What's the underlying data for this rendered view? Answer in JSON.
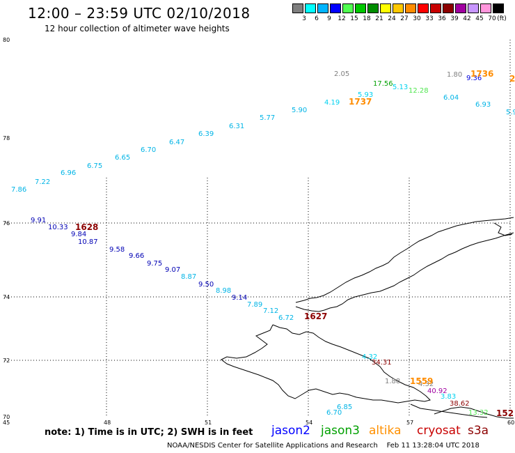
{
  "header": {
    "title": "12:00 – 23:59 UTC 02/10/2018",
    "subtitle": "12 hour collection of altimeter wave heights"
  },
  "legend": {
    "unit": "(ft)",
    "items": [
      {
        "label": "3",
        "color": "#7f7f7f"
      },
      {
        "label": "6",
        "color": "#00ffff"
      },
      {
        "label": "9",
        "color": "#00b4ff"
      },
      {
        "label": "12",
        "color": "#0000ff"
      },
      {
        "label": "15",
        "color": "#50ff50"
      },
      {
        "label": "18",
        "color": "#00c800"
      },
      {
        "label": "21",
        "color": "#008c00"
      },
      {
        "label": "24",
        "color": "#ffff00"
      },
      {
        "label": "27",
        "color": "#ffc800"
      },
      {
        "label": "30",
        "color": "#ff8c00"
      },
      {
        "label": "33",
        "color": "#ff0000"
      },
      {
        "label": "36",
        "color": "#c80000"
      },
      {
        "label": "39",
        "color": "#8c0000"
      },
      {
        "label": "42",
        "color": "#a000a0"
      },
      {
        "label": "45",
        "color": "#c896ff"
      },
      {
        "label": "70",
        "color": "#ff96dc"
      },
      {
        "label": "",
        "color": "#000000"
      }
    ]
  },
  "axes": {
    "lat_labels": [
      "80",
      "78",
      "76",
      "74",
      "72",
      "70"
    ],
    "lon_labels": [
      "45",
      "48",
      "51",
      "54",
      "57",
      "60"
    ]
  },
  "observations": [
    {
      "t": "7.86",
      "c": "#00b4e6"
    },
    {
      "t": "7.22",
      "c": "#00b4e6"
    },
    {
      "t": "6.96",
      "c": "#00b4e6"
    },
    {
      "t": "6.75",
      "c": "#00b4e6"
    },
    {
      "t": "6.65",
      "c": "#00b4e6"
    },
    {
      "t": "6.70",
      "c": "#00b4e6"
    },
    {
      "t": "6.47",
      "c": "#00b4e6"
    },
    {
      "t": "6.39",
      "c": "#00b4e6"
    },
    {
      "t": "6.31",
      "c": "#00b4e6"
    },
    {
      "t": "5.77",
      "c": "#00b4e6"
    },
    {
      "t": "5.90",
      "c": "#00b4e6"
    },
    {
      "t": "4.19",
      "c": "#00d2f0"
    },
    {
      "t": "5.93",
      "c": "#00d2f0"
    },
    {
      "t": "2.05",
      "c": "#7f7f7f"
    },
    {
      "t": "17.56",
      "c": "#00a000"
    },
    {
      "t": "5.13",
      "c": "#00d2f0"
    },
    {
      "t": "12.28",
      "c": "#50e650"
    },
    {
      "t": "1.80",
      "c": "#7f7f7f"
    },
    {
      "t": "9.36",
      "c": "#0000dc"
    },
    {
      "t": "6.04",
      "c": "#00b4e6"
    },
    {
      "t": "6.93",
      "c": "#00b4e6"
    },
    {
      "t": "5.9",
      "c": "#00b4e6"
    },
    {
      "t": "9.91",
      "c": "#0000b4"
    },
    {
      "t": "10.33",
      "c": "#0000b4"
    },
    {
      "t": "9.84",
      "c": "#0000b4"
    },
    {
      "t": "10.87",
      "c": "#0000b4"
    },
    {
      "t": "9.58",
      "c": "#0000b4"
    },
    {
      "t": "9.66",
      "c": "#0000b4"
    },
    {
      "t": "9.75",
      "c": "#0000b4"
    },
    {
      "t": "9.07",
      "c": "#0000b4"
    },
    {
      "t": "8.87",
      "c": "#00b4e6"
    },
    {
      "t": "9.50",
      "c": "#0000b4"
    },
    {
      "t": "8.98",
      "c": "#00b4e6"
    },
    {
      "t": "9.14",
      "c": "#0000b4"
    },
    {
      "t": "7.89",
      "c": "#00b4e6"
    },
    {
      "t": "7.12",
      "c": "#00b4e6"
    },
    {
      "t": "6.72",
      "c": "#00b4e6"
    },
    {
      "t": "4.32",
      "c": "#00d2f0"
    },
    {
      "t": "34.31",
      "c": "#8c0000"
    },
    {
      "t": "1.88",
      "c": "#7f7f7f"
    },
    {
      "t": "4.32",
      "c": "#7f7f7f"
    },
    {
      "t": "40.92",
      "c": "#a000a0"
    },
    {
      "t": "3.83",
      "c": "#00d2f0"
    },
    {
      "t": "38.62",
      "c": "#8c0000"
    },
    {
      "t": "13.32",
      "c": "#50e650"
    },
    {
      "t": "6.85",
      "c": "#00b4e6"
    },
    {
      "t": "6.70",
      "c": "#00b4e6"
    }
  ],
  "time_marks": [
    {
      "t": "1736",
      "c": "#ff8c00"
    },
    {
      "t": "2",
      "c": "#ff8c00"
    },
    {
      "t": "1737",
      "c": "#ff8c00"
    },
    {
      "t": "1628",
      "c": "#8c0000"
    },
    {
      "t": "1627",
      "c": "#8c0000"
    },
    {
      "t": "1559",
      "c": "#ff8c00"
    },
    {
      "t": "152",
      "c": "#8c0000"
    }
  ],
  "footer": {
    "note": "note: 1) Time is in UTC; 2) SWH is in feet",
    "satellites": [
      {
        "name": "jason2",
        "color": "#0000ff"
      },
      {
        "name": "jason3",
        "color": "#00a000"
      },
      {
        "name": "altika",
        "color": "#ff9000"
      },
      {
        "name": "cryosat",
        "color": "#c80000"
      },
      {
        "name": "s3a",
        "color": "#8c0000"
      }
    ],
    "credit": "NOAA/NESDIS Center for Satellite Applications and Research",
    "generated": "Feb 11 13:28:04 UTC 2018"
  }
}
